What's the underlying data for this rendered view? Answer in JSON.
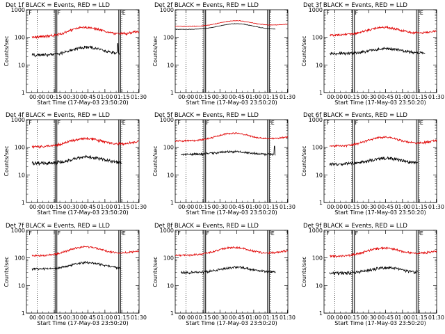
{
  "colors": {
    "events": "#000000",
    "lld": "#e00000",
    "background": "#ffffff",
    "axes": "#000000"
  },
  "figure": {
    "panel_count": 9,
    "layout": "3x3 grid"
  },
  "chart_data": [
    {
      "type": "line",
      "title": "Det 1f BLACK = Events, RED = LLD",
      "xlabel": "Start Time (17-May-03 23:50:20)",
      "ylabel": "Counts/sec",
      "x_unit": "minutes since 23:50:20",
      "xlim": [
        0,
        100
      ],
      "ylim": [
        1,
        1000
      ],
      "yscale": "log",
      "xtick_labels": [
        "00:00",
        "00:15",
        "00:30",
        "00:45",
        "01:00",
        "01:15",
        "01:30"
      ],
      "ytick_labels": [
        "1",
        "10",
        "100",
        "1000"
      ],
      "vlines_solid_x": [
        25.5,
        27.0,
        82.0,
        83.5
      ],
      "vlines_dotted_x": [
        9.6,
        24.6,
        84.6
      ],
      "top_flags": [
        "F",
        "F",
        "E"
      ],
      "series": [
        {
          "color": "red",
          "x_range": [
            5,
            100
          ],
          "base": 105,
          "amp": 2.2,
          "center": 53,
          "width": 19,
          "noise": 0.08,
          "trend": 0.55
        },
        {
          "color": "black",
          "x_range": [
            5,
            83
          ],
          "base": 23,
          "amp": 1.9,
          "center": 54,
          "width": 18,
          "noise": 0.1,
          "trend": 0.1,
          "spike_x": 81,
          "spike_y": 60
        }
      ]
    },
    {
      "type": "line",
      "title": "Det 2f BLACK = Events, RED = LLD",
      "xlabel": "Start Time (17-May-03 23:50:20)",
      "ylabel": "Counts/sec",
      "x_unit": "minutes since 23:50:20",
      "xlim": [
        0,
        100
      ],
      "ylim": [
        1,
        1000
      ],
      "yscale": "log",
      "xtick_labels": [
        "00:00",
        "00:15",
        "00:30",
        "00:45",
        "01:00",
        "01:15",
        "01:30"
      ],
      "ytick_labels": [
        "1",
        "10",
        "100",
        "1000"
      ],
      "vlines_solid_x": [
        25.5,
        27.0,
        82.0,
        83.5
      ],
      "vlines_dotted_x": [
        9.6,
        24.6,
        84.6
      ],
      "top_flags": [],
      "series": [
        {
          "color": "red",
          "x_range": [
            0,
            100
          ],
          "base": 250,
          "amp": 1.6,
          "center": 54,
          "width": 19,
          "noise": 0.02,
          "trend": 0.2
        },
        {
          "color": "black",
          "x_range": [
            0,
            89
          ],
          "base": 195,
          "amp": 1.6,
          "center": 54,
          "width": 19,
          "noise": 0.015,
          "trend": 0.0
        }
      ]
    },
    {
      "type": "line",
      "title": "Det 3f BLACK = Events, RED = LLD",
      "xlabel": "Start Time (17-May-03 23:50:20)",
      "ylabel": "Counts/sec",
      "x_unit": "minutes since 23:50:20",
      "xlim": [
        0,
        100
      ],
      "ylim": [
        1,
        1000
      ],
      "yscale": "log",
      "xtick_labels": [
        "00:00",
        "00:15",
        "00:30",
        "00:45",
        "01:00",
        "01:15",
        "01:30"
      ],
      "ytick_labels": [
        "1",
        "10",
        "100",
        "1000"
      ],
      "vlines_solid_x": [
        25.5,
        27.0,
        82.0,
        83.5
      ],
      "vlines_dotted_x": [
        9.6,
        24.6,
        84.6
      ],
      "top_flags": [
        "F",
        "F",
        "E"
      ],
      "series": [
        {
          "color": "red",
          "x_range": [
            5,
            100
          ],
          "base": 120,
          "amp": 1.9,
          "center": 53,
          "width": 19,
          "noise": 0.07,
          "trend": 0.4
        },
        {
          "color": "black",
          "x_range": [
            5,
            90
          ],
          "base": 26,
          "amp": 1.5,
          "center": 55,
          "width": 18,
          "noise": 0.09,
          "trend": 0.05
        }
      ]
    },
    {
      "type": "line",
      "title": "Det 4f BLACK = Events, RED = LLD",
      "xlabel": "Start Time (17-May-03 23:50:20)",
      "ylabel": "Counts/sec",
      "x_unit": "minutes since 23:50:20",
      "xlim": [
        0,
        100
      ],
      "ylim": [
        1,
        1000
      ],
      "yscale": "log",
      "xtick_labels": [
        "00:00",
        "00:15",
        "00:30",
        "00:45",
        "01:00",
        "01:15",
        "01:30"
      ],
      "ytick_labels": [
        "1",
        "10",
        "100",
        "1000"
      ],
      "vlines_solid_x": [
        25.5,
        27.0,
        82.0,
        83.5
      ],
      "vlines_dotted_x": [
        9.6,
        24.6,
        84.6
      ],
      "top_flags": [
        "F",
        "F",
        "E"
      ],
      "series": [
        {
          "color": "red",
          "x_range": [
            5,
            100
          ],
          "base": 105,
          "amp": 2.0,
          "center": 53,
          "width": 19,
          "noise": 0.08,
          "trend": 0.55
        },
        {
          "color": "black",
          "x_range": [
            5,
            85
          ],
          "base": 26,
          "amp": 1.7,
          "center": 54,
          "width": 18,
          "noise": 0.11,
          "trend": 0.05
        }
      ]
    },
    {
      "type": "line",
      "title": "Det 5f BLACK = Events, RED = LLD",
      "xlabel": "Start Time (17-May-03 23:50:20)",
      "ylabel": "Counts/sec",
      "x_unit": "minutes since 23:50:20",
      "xlim": [
        0,
        100
      ],
      "ylim": [
        1,
        1000
      ],
      "yscale": "log",
      "xtick_labels": [
        "00:00",
        "00:15",
        "00:30",
        "00:45",
        "01:00",
        "01:15",
        "01:30"
      ],
      "ytick_labels": [
        "1",
        "10",
        "100",
        "1000"
      ],
      "vlines_solid_x": [
        25.5,
        27.0,
        82.0,
        83.5
      ],
      "vlines_dotted_x": [
        9.6,
        24.6,
        84.6
      ],
      "top_flags": [
        "F",
        "F",
        "E"
      ],
      "series": [
        {
          "color": "red",
          "x_range": [
            0,
            100
          ],
          "base": 170,
          "amp": 1.9,
          "center": 52,
          "width": 19,
          "noise": 0.05,
          "trend": 0.4
        },
        {
          "color": "black",
          "x_range": [
            5,
            89
          ],
          "base": 55,
          "amp": 1.25,
          "center": 50,
          "width": 20,
          "noise": 0.07,
          "trend": 0.0,
          "spike_x": 88,
          "spike_y": 110
        }
      ]
    },
    {
      "type": "line",
      "title": "Det 6f BLACK = Events, RED = LLD",
      "xlabel": "Start Time (17-May-03 23:50:20)",
      "ylabel": "Counts/sec",
      "x_unit": "minutes since 23:50:20",
      "xlim": [
        0,
        100
      ],
      "ylim": [
        1,
        1000
      ],
      "yscale": "log",
      "xtick_labels": [
        "00:00",
        "00:15",
        "00:30",
        "00:45",
        "01:00",
        "01:15",
        "01:30"
      ],
      "ytick_labels": [
        "1",
        "10",
        "100",
        "1000"
      ],
      "vlines_solid_x": [
        25.5,
        27.0,
        82.0,
        83.5
      ],
      "vlines_dotted_x": [
        9.6,
        24.6,
        84.6
      ],
      "top_flags": [
        "F",
        "F",
        "E"
      ],
      "series": [
        {
          "color": "red",
          "x_range": [
            5,
            100
          ],
          "base": 110,
          "amp": 2.1,
          "center": 53,
          "width": 19,
          "noise": 0.07,
          "trend": 0.6
        },
        {
          "color": "black",
          "x_range": [
            5,
            84
          ],
          "base": 25,
          "amp": 1.6,
          "center": 55,
          "width": 18,
          "noise": 0.1,
          "trend": 0.1
        }
      ]
    },
    {
      "type": "line",
      "title": "Det 7f BLACK = Events, RED = LLD",
      "xlabel": "Start Time (17-May-03 23:50:20)",
      "ylabel": "Counts/sec",
      "x_unit": "minutes since 23:50:20",
      "xlim": [
        0,
        100
      ],
      "ylim": [
        1,
        1000
      ],
      "yscale": "log",
      "xtick_labels": [
        "00:00",
        "00:15",
        "00:30",
        "00:45",
        "01:00",
        "01:15",
        "01:30"
      ],
      "ytick_labels": [
        "1",
        "10",
        "100",
        "1000"
      ],
      "vlines_solid_x": [
        25.5,
        27.0,
        82.0,
        83.5
      ],
      "vlines_dotted_x": [
        9.6,
        24.6,
        84.6
      ],
      "top_flags": [
        "F",
        "F",
        "E"
      ],
      "series": [
        {
          "color": "red",
          "x_range": [
            5,
            100
          ],
          "base": 120,
          "amp": 2.1,
          "center": 53,
          "width": 19,
          "noise": 0.06,
          "trend": 0.5
        },
        {
          "color": "black",
          "x_range": [
            5,
            84
          ],
          "base": 40,
          "amp": 1.7,
          "center": 54,
          "width": 18,
          "noise": 0.07,
          "trend": 0.1
        }
      ]
    },
    {
      "type": "line",
      "title": "Det 8f BLACK = Events, RED = LLD",
      "xlabel": "Start Time (17-May-03 23:50:20)",
      "ylabel": "Counts/sec",
      "x_unit": "minutes since 23:50:20",
      "xlim": [
        0,
        100
      ],
      "ylim": [
        1,
        1000
      ],
      "yscale": "log",
      "xtick_labels": [
        "00:00",
        "00:15",
        "00:30",
        "00:45",
        "01:00",
        "01:15",
        "01:30"
      ],
      "ytick_labels": [
        "1",
        "10",
        "100",
        "1000"
      ],
      "vlines_solid_x": [
        25.5,
        27.0,
        82.0,
        83.5
      ],
      "vlines_dotted_x": [
        9.6,
        24.6,
        84.6
      ],
      "top_flags": [
        "F",
        "F",
        "E"
      ],
      "series": [
        {
          "color": "red",
          "x_range": [
            0,
            100
          ],
          "base": 125,
          "amp": 1.9,
          "center": 52,
          "width": 19,
          "noise": 0.06,
          "trend": 0.45
        },
        {
          "color": "black",
          "x_range": [
            5,
            89
          ],
          "base": 30,
          "amp": 1.5,
          "center": 54,
          "width": 18,
          "noise": 0.08,
          "trend": 0.05
        }
      ]
    },
    {
      "type": "line",
      "title": "Det 9f BLACK = Events, RED = LLD",
      "xlabel": "Start Time (17-May-03 23:50:20)",
      "ylabel": "Counts/sec",
      "x_unit": "minutes since 23:50:20",
      "xlim": [
        0,
        100
      ],
      "ylim": [
        1,
        1000
      ],
      "yscale": "log",
      "xtick_labels": [
        "00:00",
        "00:15",
        "00:30",
        "00:45",
        "01:00",
        "01:15",
        "01:30"
      ],
      "ytick_labels": [
        "1",
        "10",
        "100",
        "1000"
      ],
      "vlines_solid_x": [
        25.5,
        27.0,
        82.0,
        83.5
      ],
      "vlines_dotted_x": [
        9.6,
        24.6,
        84.6
      ],
      "top_flags": [
        "F",
        "F",
        "E"
      ],
      "series": [
        {
          "color": "red",
          "x_range": [
            5,
            100
          ],
          "base": 115,
          "amp": 2.0,
          "center": 53,
          "width": 19,
          "noise": 0.07,
          "trend": 0.55
        },
        {
          "color": "black",
          "x_range": [
            5,
            84
          ],
          "base": 28,
          "amp": 1.6,
          "center": 55,
          "width": 18,
          "noise": 0.1,
          "trend": 0.1
        }
      ]
    }
  ]
}
